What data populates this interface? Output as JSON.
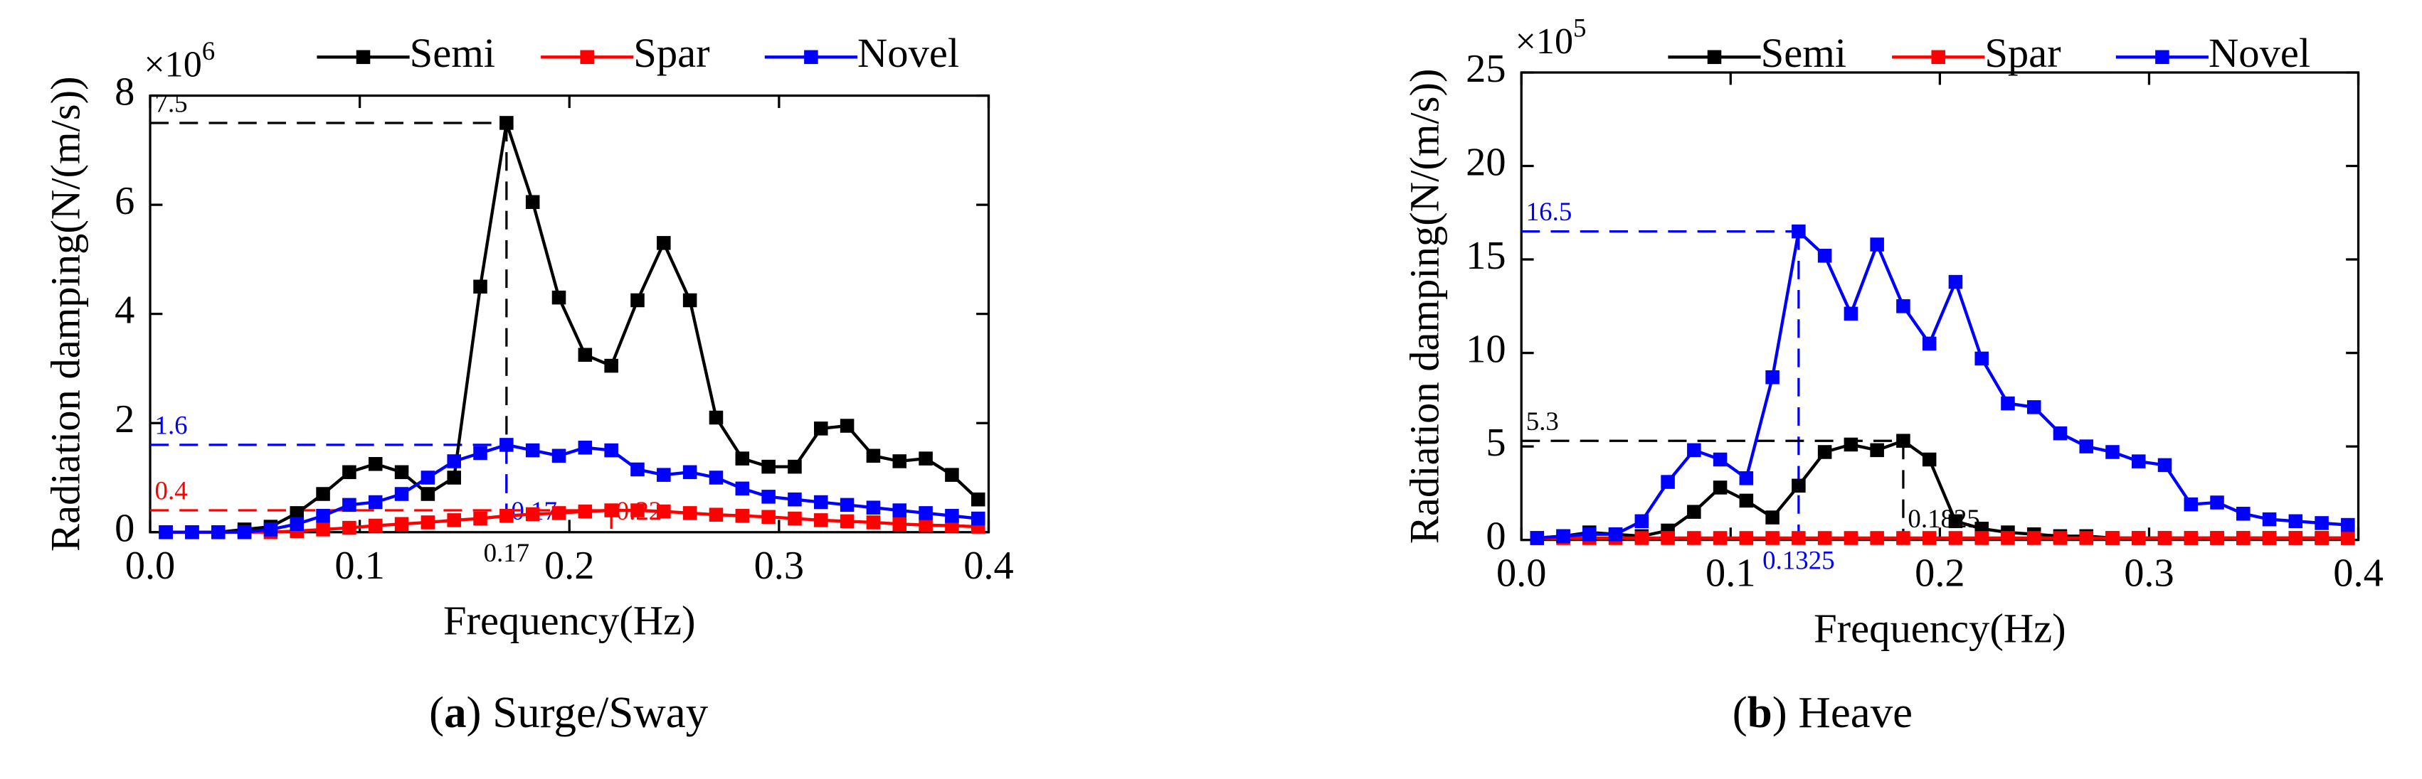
{
  "chart_data": [
    {
      "type": "line",
      "y_label": "Radiation damping(N/(m/s))",
      "x_label": "Frequency(Hz)",
      "y_multiplier": {
        "base": "×10",
        "exponent": "6"
      },
      "caption": [
        "(",
        "a",
        ") Surge/Sway"
      ],
      "x": [
        0.0075,
        0.02,
        0.0325,
        0.045,
        0.0575,
        0.07,
        0.0825,
        0.095,
        0.1075,
        0.12,
        0.1325,
        0.145,
        0.1575,
        0.17,
        0.1825,
        0.195,
        0.2075,
        0.22,
        0.2325,
        0.245,
        0.2575,
        0.27,
        0.2825,
        0.295,
        0.3075,
        0.32,
        0.3325,
        0.345,
        0.3575,
        0.37,
        0.3825,
        0.395
      ],
      "series": [
        {
          "name": "Semi",
          "color": "#000000",
          "values": [
            0,
            0,
            0,
            0.05,
            0.1,
            0.35,
            0.7,
            1.1,
            1.25,
            1.1,
            0.7,
            1.0,
            4.5,
            7.5,
            6.05,
            4.3,
            3.25,
            3.05,
            4.25,
            5.3,
            4.25,
            2.1,
            1.35,
            1.2,
            1.2,
            1.9,
            1.95,
            1.4,
            1.3,
            1.35,
            1.05,
            0.6
          ]
        },
        {
          "name": "Spar",
          "color": "#ff0000",
          "values": [
            0,
            0,
            0,
            0,
            0,
            0.02,
            0.05,
            0.08,
            0.12,
            0.15,
            0.18,
            0.22,
            0.25,
            0.3,
            0.33,
            0.35,
            0.38,
            0.4,
            0.4,
            0.38,
            0.35,
            0.32,
            0.3,
            0.28,
            0.25,
            0.22,
            0.2,
            0.18,
            0.15,
            0.13,
            0.12,
            0.1
          ]
        },
        {
          "name": "Novel",
          "color": "#0000ff",
          "values": [
            0,
            0,
            0,
            0,
            0.05,
            0.15,
            0.3,
            0.5,
            0.55,
            0.7,
            1.0,
            1.3,
            1.45,
            1.6,
            1.5,
            1.4,
            1.55,
            1.5,
            1.15,
            1.05,
            1.1,
            1.0,
            0.8,
            0.65,
            0.6,
            0.55,
            0.5,
            0.45,
            0.4,
            0.35,
            0.3,
            0.25
          ]
        }
      ],
      "reference_lines": [
        {
          "x": 0.17,
          "y": 7.5,
          "color": "#000000"
        },
        {
          "x": 0.17,
          "y": 1.6,
          "color": "#0000ff"
        },
        {
          "x": 0.22,
          "y": 0.4,
          "color": "#ff0000"
        }
      ],
      "xlim": [
        0,
        0.4
      ],
      "xticks": [
        {
          "value": 0,
          "label": "0.0"
        },
        0.1,
        0.2,
        0.3,
        0.4
      ],
      "ylim": [
        0,
        8
      ],
      "yticks": [
        0,
        2,
        4,
        6,
        8
      ]
    },
    {
      "type": "line",
      "y_label": "Radiation damping(N/(m/s))",
      "x_label": "Frequency(Hz)",
      "y_multiplier": {
        "base": "×10",
        "exponent": "5"
      },
      "caption": [
        "(",
        "b",
        ") Heave"
      ],
      "x": [
        0.0075,
        0.02,
        0.0325,
        0.045,
        0.0575,
        0.07,
        0.0825,
        0.095,
        0.1075,
        0.12,
        0.1325,
        0.145,
        0.1575,
        0.17,
        0.1825,
        0.195,
        0.2075,
        0.22,
        0.2325,
        0.245,
        0.2575,
        0.27,
        0.2825,
        0.295,
        0.3075,
        0.32,
        0.3325,
        0.345,
        0.3575,
        0.37,
        0.3825,
        0.395
      ],
      "series": [
        {
          "name": "Semi",
          "color": "#000000",
          "values": [
            0.1,
            0.2,
            0.4,
            0.3,
            0.2,
            0.5,
            1.5,
            2.8,
            2.1,
            1.2,
            2.9,
            4.7,
            5.1,
            4.8,
            5.3,
            4.3,
            1.0,
            0.6,
            0.4,
            0.3,
            0.2,
            0.2,
            0.1,
            0.1,
            0.1,
            0.1,
            0.1,
            0.1,
            0.1,
            0.1,
            0.1,
            0.1
          ]
        },
        {
          "name": "Spar",
          "color": "#ff0000",
          "values": [
            0.1,
            0.1,
            0.1,
            0.1,
            0.1,
            0.1,
            0.1,
            0.1,
            0.1,
            0.1,
            0.1,
            0.1,
            0.1,
            0.1,
            0.1,
            0.1,
            0.1,
            0.1,
            0.1,
            0.1,
            0.1,
            0.1,
            0.1,
            0.1,
            0.1,
            0.1,
            0.1,
            0.1,
            0.1,
            0.1,
            0.1,
            0.1
          ]
        },
        {
          "name": "Novel",
          "color": "#0000ff",
          "values": [
            0.1,
            0.2,
            0.3,
            0.3,
            1.0,
            3.1,
            4.8,
            4.3,
            3.3,
            8.7,
            16.5,
            15.2,
            12.1,
            15.8,
            12.5,
            10.5,
            13.8,
            9.7,
            7.3,
            7.1,
            5.7,
            5.0,
            4.7,
            4.2,
            4.0,
            1.9,
            2.0,
            1.4,
            1.1,
            1.0,
            0.9,
            0.8
          ]
        }
      ],
      "reference_lines": [
        {
          "x": 0.1325,
          "y": 16.5,
          "color": "#0000ff"
        },
        {
          "x": 0.1825,
          "y": 5.3,
          "color": "#000000"
        }
      ],
      "xlim": [
        0,
        0.4
      ],
      "xticks": [
        {
          "value": 0,
          "label": "0.0"
        },
        0.1,
        0.2,
        0.3,
        0.4
      ],
      "ylim": [
        0,
        25
      ],
      "yticks": [
        0,
        5,
        10,
        15,
        20,
        25
      ]
    }
  ]
}
